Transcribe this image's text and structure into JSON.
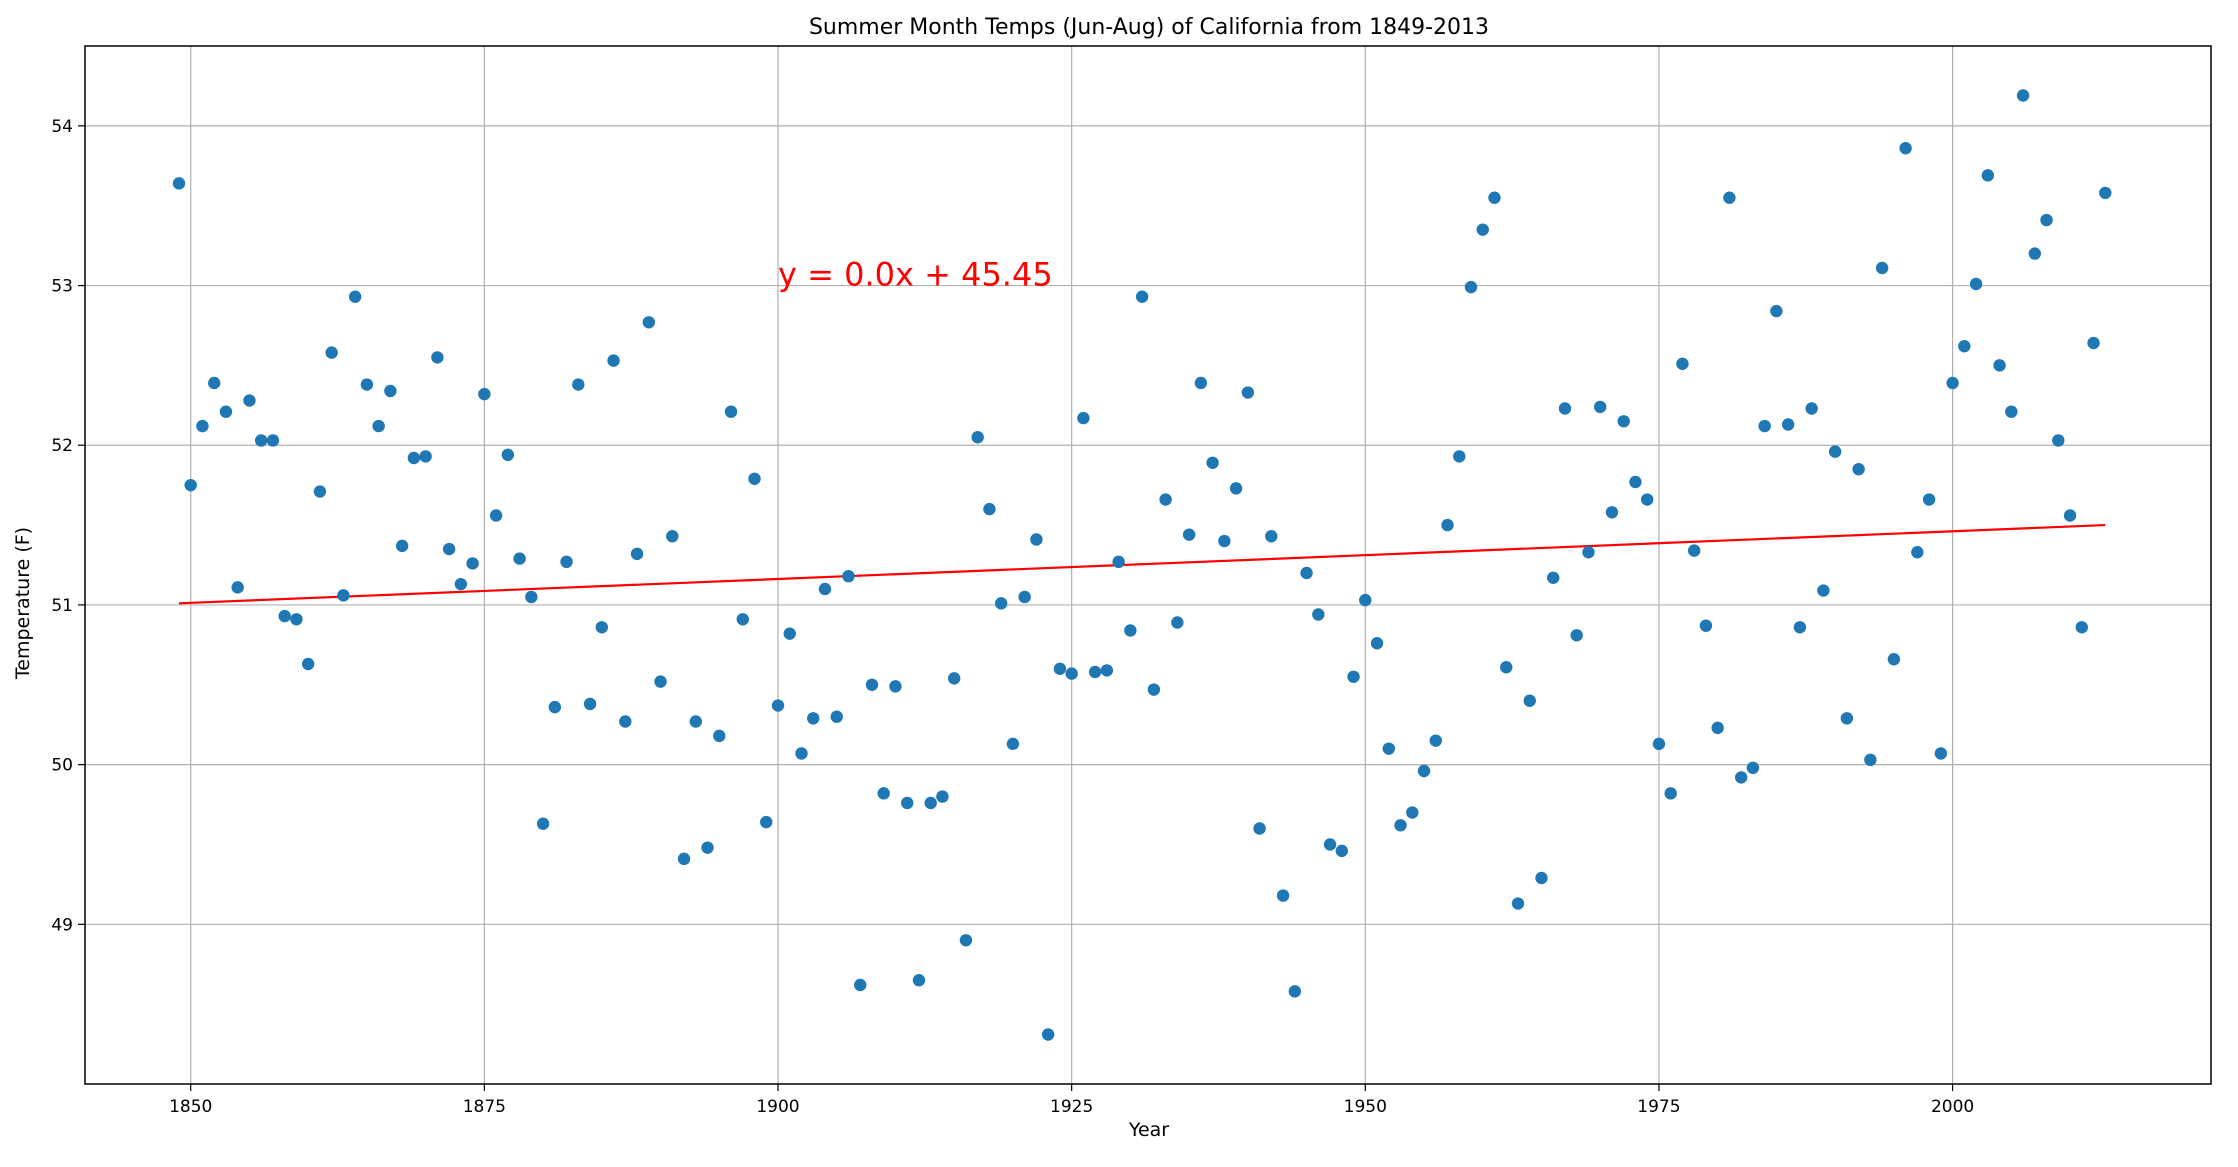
{
  "chart_data": {
    "type": "scatter",
    "title": "Summer Month Temps (Jun-Aug) of California from 1849-2013",
    "xlabel": "Year",
    "ylabel": "Temperature (F)",
    "xlim": [
      1841,
      2022
    ],
    "ylim": [
      48.0,
      54.5
    ],
    "xticks": [
      1850,
      1875,
      1900,
      1925,
      1950,
      1975,
      2000
    ],
    "yticks": [
      49,
      50,
      51,
      52,
      53,
      54
    ],
    "grid": true,
    "annotation": {
      "text": "y = 0.0x + 45.45",
      "x": 1900,
      "y": 53.0,
      "color": "#ff0000"
    },
    "regression": {
      "x": [
        1849,
        2013
      ],
      "y": [
        51.01,
        51.5
      ],
      "color": "#ff0000"
    },
    "marker_color": "#1f77b4",
    "points": {
      "x": [
        1849,
        1850,
        1851,
        1852,
        1853,
        1854,
        1855,
        1856,
        1857,
        1858,
        1859,
        1860,
        1861,
        1862,
        1863,
        1864,
        1865,
        1866,
        1867,
        1868,
        1869,
        1870,
        1871,
        1872,
        1873,
        1874,
        1875,
        1876,
        1877,
        1878,
        1879,
        1880,
        1881,
        1882,
        1883,
        1884,
        1885,
        1886,
        1887,
        1888,
        1889,
        1890,
        1891,
        1892,
        1893,
        1894,
        1895,
        1896,
        1897,
        1898,
        1899,
        1900,
        1901,
        1902,
        1903,
        1904,
        1905,
        1906,
        1907,
        1908,
        1909,
        1910,
        1911,
        1912,
        1913,
        1914,
        1915,
        1916,
        1917,
        1918,
        1919,
        1920,
        1921,
        1922,
        1923,
        1924,
        1925,
        1926,
        1927,
        1928,
        1929,
        1930,
        1931,
        1932,
        1933,
        1934,
        1935,
        1936,
        1937,
        1938,
        1939,
        1940,
        1941,
        1942,
        1943,
        1944,
        1945,
        1946,
        1947,
        1948,
        1949,
        1950,
        1951,
        1952,
        1953,
        1954,
        1955,
        1956,
        1957,
        1958,
        1959,
        1960,
        1961,
        1962,
        1963,
        1964,
        1965,
        1966,
        1967,
        1968,
        1969,
        1970,
        1971,
        1972,
        1973,
        1974,
        1975,
        1976,
        1977,
        1978,
        1979,
        1980,
        1981,
        1982,
        1983,
        1984,
        1985,
        1986,
        1987,
        1988,
        1989,
        1990,
        1991,
        1992,
        1993,
        1994,
        1995,
        1996,
        1997,
        1998,
        1999,
        2000,
        2001,
        2002,
        2003,
        2004,
        2005,
        2006,
        2007,
        2008,
        2009,
        2010,
        2011,
        2012,
        2013
      ],
      "y": [
        53.64,
        51.75,
        52.12,
        52.39,
        52.21,
        51.11,
        52.28,
        52.03,
        52.03,
        50.93,
        50.91,
        50.63,
        51.71,
        52.58,
        51.06,
        52.93,
        52.38,
        52.12,
        52.34,
        51.37,
        51.92,
        51.93,
        52.55,
        51.35,
        51.13,
        51.26,
        52.32,
        51.56,
        51.94,
        51.29,
        51.05,
        49.63,
        50.36,
        51.27,
        52.38,
        50.38,
        50.86,
        52.53,
        50.27,
        51.32,
        52.77,
        50.52,
        51.43,
        49.41,
        50.27,
        49.48,
        50.18,
        52.21,
        50.91,
        51.79,
        49.64,
        50.37,
        50.82,
        50.07,
        50.29,
        51.1,
        50.3,
        51.18,
        48.62,
        50.5,
        49.82,
        50.49,
        49.76,
        48.65,
        49.76,
        49.8,
        50.54,
        48.9,
        52.05,
        51.6,
        51.01,
        50.13,
        51.05,
        51.41,
        48.31,
        50.6,
        50.57,
        52.17,
        50.58,
        50.59,
        51.27,
        50.84,
        52.93,
        50.47,
        51.66,
        50.89,
        51.44,
        52.39,
        51.89,
        51.4,
        51.73,
        52.33,
        49.6,
        51.43,
        49.18,
        48.58,
        51.2,
        50.94,
        49.5,
        49.46,
        50.55,
        51.03,
        50.76,
        50.1,
        49.62,
        49.7,
        49.96,
        50.15,
        51.5,
        51.93,
        52.99,
        53.35,
        53.55,
        50.61,
        49.13,
        50.4,
        49.29,
        51.17,
        52.23,
        50.81,
        51.33,
        52.24,
        51.58,
        52.15,
        51.77,
        51.66,
        50.13,
        49.82,
        52.51,
        51.34,
        50.87,
        50.23,
        53.55,
        49.92,
        49.98,
        52.12,
        52.84,
        52.13,
        50.86,
        52.23,
        51.09,
        51.96,
        50.29,
        51.85,
        50.03,
        53.11,
        50.66,
        53.86,
        51.33,
        51.66,
        50.07,
        52.39,
        52.62,
        53.01,
        53.69,
        52.5,
        52.21,
        54.19,
        53.2,
        53.41,
        52.03,
        51.56,
        50.86,
        52.64,
        53.58
      ]
    }
  }
}
